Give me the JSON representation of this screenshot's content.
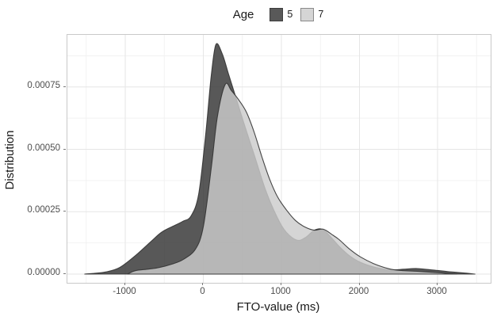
{
  "legend": {
    "title": "Age",
    "items": [
      {
        "label": "5",
        "color": "#595959",
        "border": "#3d3d3d"
      },
      {
        "label": "7",
        "color": "#d5d5d5",
        "border": "#8a8a8a"
      }
    ]
  },
  "colors": {
    "panel_border": "#c9c9c9",
    "grid_major": "#e6e6e6",
    "grid_minor": "#f2f2f2",
    "tick_text": "#4d4d4d",
    "axis_title_text": "#1a1a1a",
    "curve_stroke": "#333333"
  },
  "chart_data": {
    "type": "area",
    "subtype": "overlaid-density",
    "title": "",
    "xlabel": "FTO-value (ms)",
    "ylabel": "Distribution",
    "legend_title": "Age",
    "legend_position": "top-center",
    "grid": true,
    "xlim": [
      -1741,
      3680
    ],
    "ylim": [
      -3.5e-05,
      0.000959
    ],
    "x_ticks": {
      "values": [
        -1000,
        0,
        1000,
        2000,
        3000
      ],
      "labels": [
        "-1000",
        "0",
        "1000",
        "2000",
        "3000"
      ],
      "minor": [
        -1500,
        -500,
        500,
        1500,
        2500,
        3500
      ]
    },
    "y_ticks": {
      "values": [
        0,
        0.00025,
        0.0005,
        0.00075
      ],
      "labels": [
        "0.00000",
        "0.00025",
        "0.00050",
        "0.00075"
      ],
      "minor": [
        0.000125,
        0.000375,
        0.000625,
        0.000875
      ]
    },
    "series": [
      {
        "name": "5",
        "fill": "#333333",
        "fill_opacity": 0.82,
        "stroke": "#333333",
        "points": [
          [
            -1520,
            0
          ],
          [
            -1400,
            3.2e-06
          ],
          [
            -1250,
            8.5e-06
          ],
          [
            -1070,
            2.65e-05
          ],
          [
            -870,
            7.4e-05
          ],
          [
            -665,
            0.000132
          ],
          [
            -530,
            0.000169
          ],
          [
            -360,
            0.000196
          ],
          [
            -259,
            0.000212
          ],
          [
            -157,
            0.000233
          ],
          [
            -60,
            0.00032
          ],
          [
            30,
            0.00056
          ],
          [
            100,
            0.00079
          ],
          [
            160,
            0.00092
          ],
          [
            240,
            0.000885
          ],
          [
            320,
            0.000805
          ],
          [
            420,
            0.000705
          ],
          [
            530,
            0.000595
          ],
          [
            650,
            0.00048
          ],
          [
            800,
            0.000335
          ],
          [
            950,
            0.000225
          ],
          [
            1060,
            0.000169
          ],
          [
            1200,
            0.000136
          ],
          [
            1310,
            0.000147
          ],
          [
            1430,
            0.000177
          ],
          [
            1550,
            0.000174
          ],
          [
            1740,
            0.000111
          ],
          [
            1870,
            7.4e-05
          ],
          [
            2010,
            4.76e-05
          ],
          [
            2210,
            2.65e-05
          ],
          [
            2400,
            1.75e-05
          ],
          [
            2570,
            1.95e-05
          ],
          [
            2740,
            2.22e-05
          ],
          [
            2950,
            1.6e-05
          ],
          [
            3150,
            9.5e-06
          ],
          [
            3350,
            4e-06
          ],
          [
            3480,
            0
          ]
        ]
      },
      {
        "name": "7",
        "fill": "#cccccc",
        "fill_opacity": 0.82,
        "stroke": "#333333",
        "points": [
          [
            -970,
            0
          ],
          [
            -870,
            1.37e-05
          ],
          [
            -700,
            2e-05
          ],
          [
            -560,
            2.65e-05
          ],
          [
            -400,
            4e-05
          ],
          [
            -260,
            5.82e-05
          ],
          [
            -100,
            0.0001
          ],
          [
            0,
            0.00019
          ],
          [
            100,
            0.00042
          ],
          [
            180,
            0.00063
          ],
          [
            280,
            0.00076
          ],
          [
            360,
            0.000735
          ],
          [
            450,
            0.0007
          ],
          [
            550,
            0.00065
          ],
          [
            650,
            0.00057
          ],
          [
            750,
            0.00047
          ],
          [
            850,
            0.00038
          ],
          [
            950,
            0.00031
          ],
          [
            1060,
            0.000259
          ],
          [
            1180,
            0.000215
          ],
          [
            1300,
            0.000189
          ],
          [
            1420,
            0.000176
          ],
          [
            1535,
            0.00018
          ],
          [
            1650,
            0.000158
          ],
          [
            1740,
            0.000138
          ],
          [
            1870,
            0.000101
          ],
          [
            2010,
            6.93e-05
          ],
          [
            2180,
            4.23e-05
          ],
          [
            2380,
            2.12e-05
          ],
          [
            2550,
            1.4e-05
          ],
          [
            2740,
            1.1e-05
          ],
          [
            2950,
            7e-06
          ],
          [
            3100,
            3.5e-06
          ],
          [
            3250,
            0
          ]
        ]
      }
    ]
  }
}
